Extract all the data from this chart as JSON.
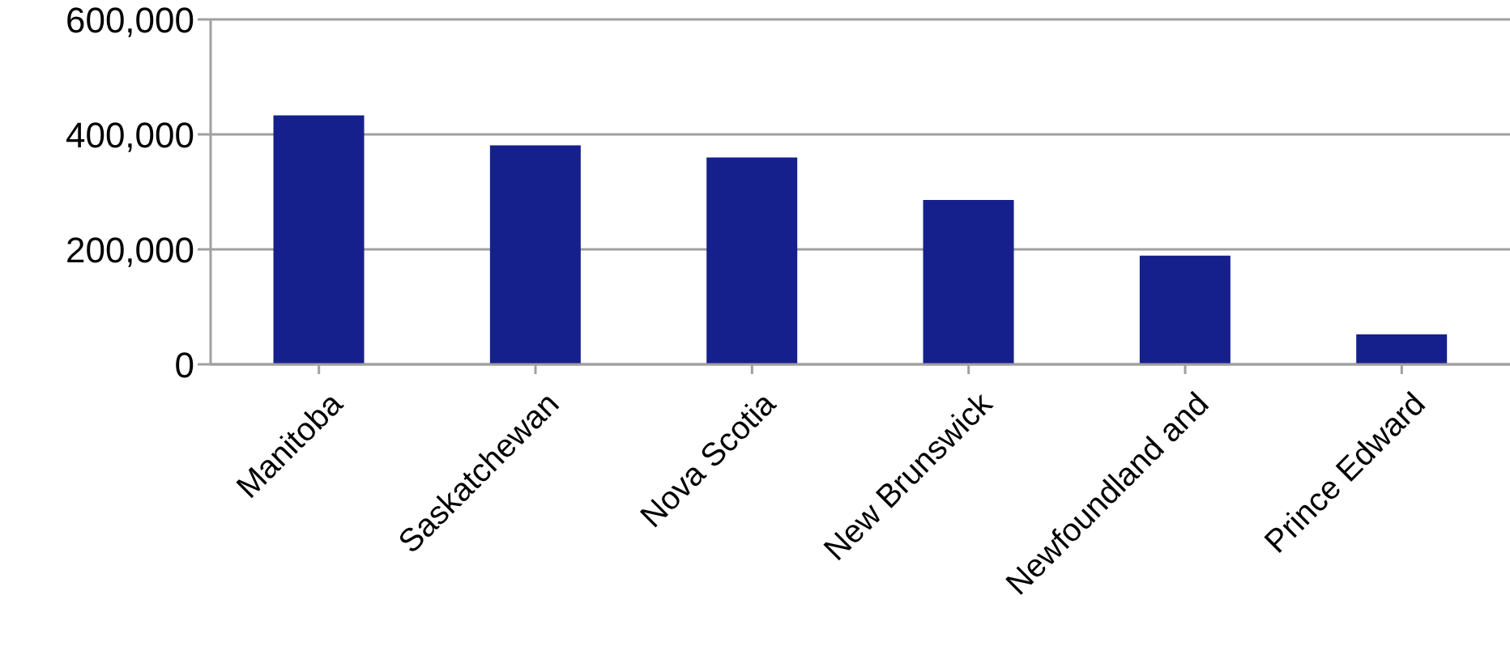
{
  "chart_data": {
    "type": "bar",
    "categories": [
      "Manitoba",
      "Saskatchewan",
      "Nova Scotia",
      "New Brunswick",
      "Newfoundland and",
      "Prince Edward"
    ],
    "series": [
      {
        "color": "#16208c",
        "values": [
          433000,
          381000,
          360000,
          286000,
          189000,
          52000
        ]
      }
    ],
    "ylim": [
      0,
      600000
    ],
    "yticks": [
      0,
      {
        "value": 200000,
        "label": "200,000"
      },
      {
        "value": 400000,
        "label": "400,000"
      },
      {
        "value": 600000,
        "label": "600,000"
      }
    ],
    "grid": "y",
    "legend": false
  }
}
